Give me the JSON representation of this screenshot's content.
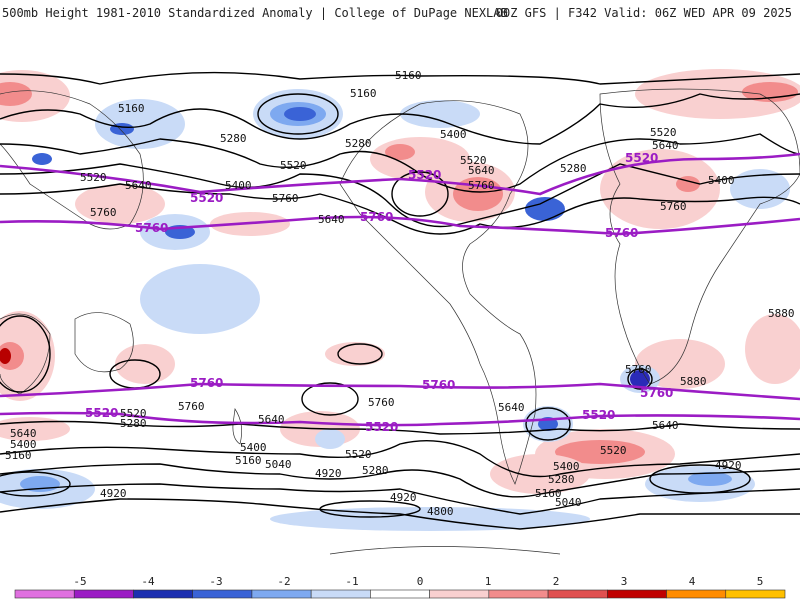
{
  "header": {
    "left_title": "500mb Height 1981-2010 Standardized Anomaly | College of DuPage NEXLAB",
    "right_title": "00Z GFS | F342 Valid: 06Z WED APR 09 2025"
  },
  "contour_labels": {
    "c5160": "5160",
    "c5280": "5280",
    "c5400": "5400",
    "c5520": "5520",
    "c5640": "5640",
    "c5760": "5760",
    "c5880": "5880",
    "c5040": "5040",
    "c4920": "4920",
    "c4800": "4800"
  },
  "colors": {
    "purple_contour": "#9b1cc4",
    "neg_1": "#c9dbf7",
    "neg_2": "#7ea9f0",
    "neg_3": "#3a63d6",
    "neg_4": "#2a2ab8",
    "pos_1": "#f9d0d0",
    "pos_2": "#f28c8c",
    "pos_3": "#d83a3a",
    "pos_4": "#b80000"
  },
  "colorbar": {
    "ticks": [
      "-5",
      "-4",
      "-3",
      "-2",
      "-1",
      "0",
      "1",
      "2",
      "3",
      "4",
      "5"
    ],
    "colors": [
      "#e070e0",
      "#9b1cc4",
      "#1c2fb0",
      "#3a63d6",
      "#7ea9f0",
      "#c9dbf7",
      "#ffffff",
      "#f9d0d0",
      "#f28c8c",
      "#e05050",
      "#c00000",
      "#ff8c00",
      "#ffc000"
    ]
  }
}
